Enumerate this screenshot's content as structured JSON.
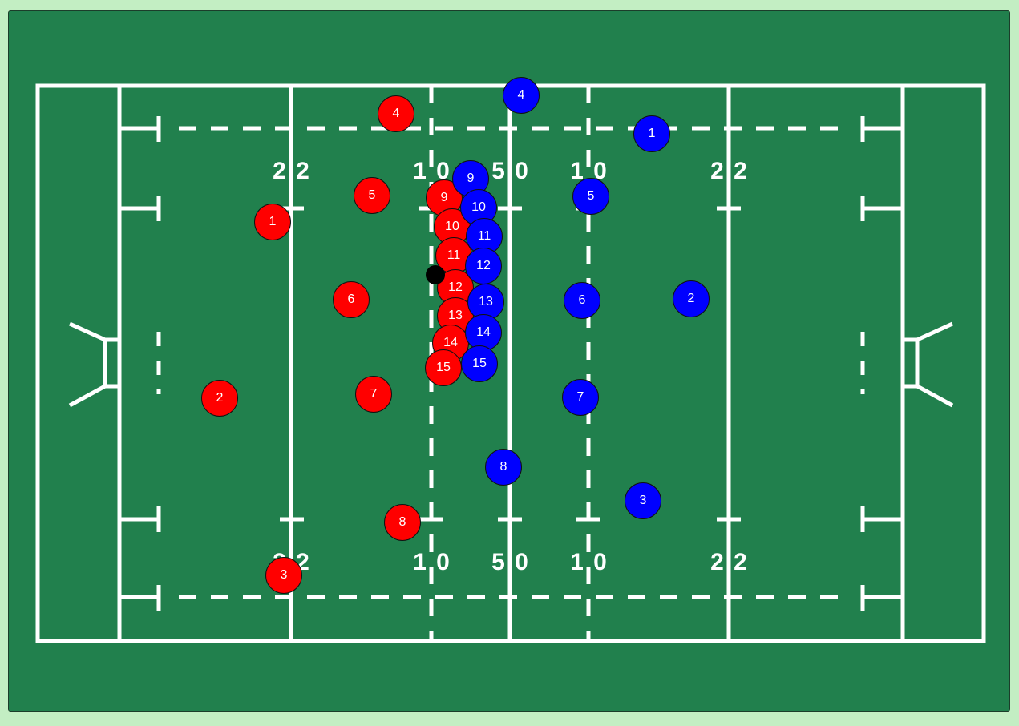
{
  "colors": {
    "page_background": "#c3eec3",
    "pitch": "#21804d",
    "lines": "#ffffff",
    "team_red": "#ff0000",
    "team_blue": "#0000ff",
    "ball": "#000000"
  },
  "pitch": {
    "marking_labels": {
      "left_22_top": "2 2",
      "left_10_top": "1 0",
      "half_top": "5 0",
      "right_10_top": "1 0",
      "right_22_top": "2 2",
      "left_22_bottom": "2 2",
      "left_10_bottom": "1 0",
      "half_bottom": "5 0",
      "right_10_bottom": "1 0",
      "right_22_bottom": "2 2"
    }
  },
  "teams": {
    "red": {
      "color_name": "red",
      "players": [
        {
          "number": "1"
        },
        {
          "number": "2"
        },
        {
          "number": "3"
        },
        {
          "number": "4"
        },
        {
          "number": "5"
        },
        {
          "number": "6"
        },
        {
          "number": "7"
        },
        {
          "number": "8"
        },
        {
          "number": "9"
        },
        {
          "number": "10"
        },
        {
          "number": "11"
        },
        {
          "number": "12"
        },
        {
          "number": "13"
        },
        {
          "number": "14"
        },
        {
          "number": "15"
        }
      ]
    },
    "blue": {
      "color_name": "blue",
      "players": [
        {
          "number": "1"
        },
        {
          "number": "2"
        },
        {
          "number": "3"
        },
        {
          "number": "4"
        },
        {
          "number": "5"
        },
        {
          "number": "6"
        },
        {
          "number": "7"
        },
        {
          "number": "8"
        },
        {
          "number": "9"
        },
        {
          "number": "10"
        },
        {
          "number": "11"
        },
        {
          "number": "12"
        },
        {
          "number": "13"
        },
        {
          "number": "14"
        },
        {
          "number": "15"
        }
      ]
    }
  },
  "ball": {
    "icon": "rugby-ball-icon"
  }
}
